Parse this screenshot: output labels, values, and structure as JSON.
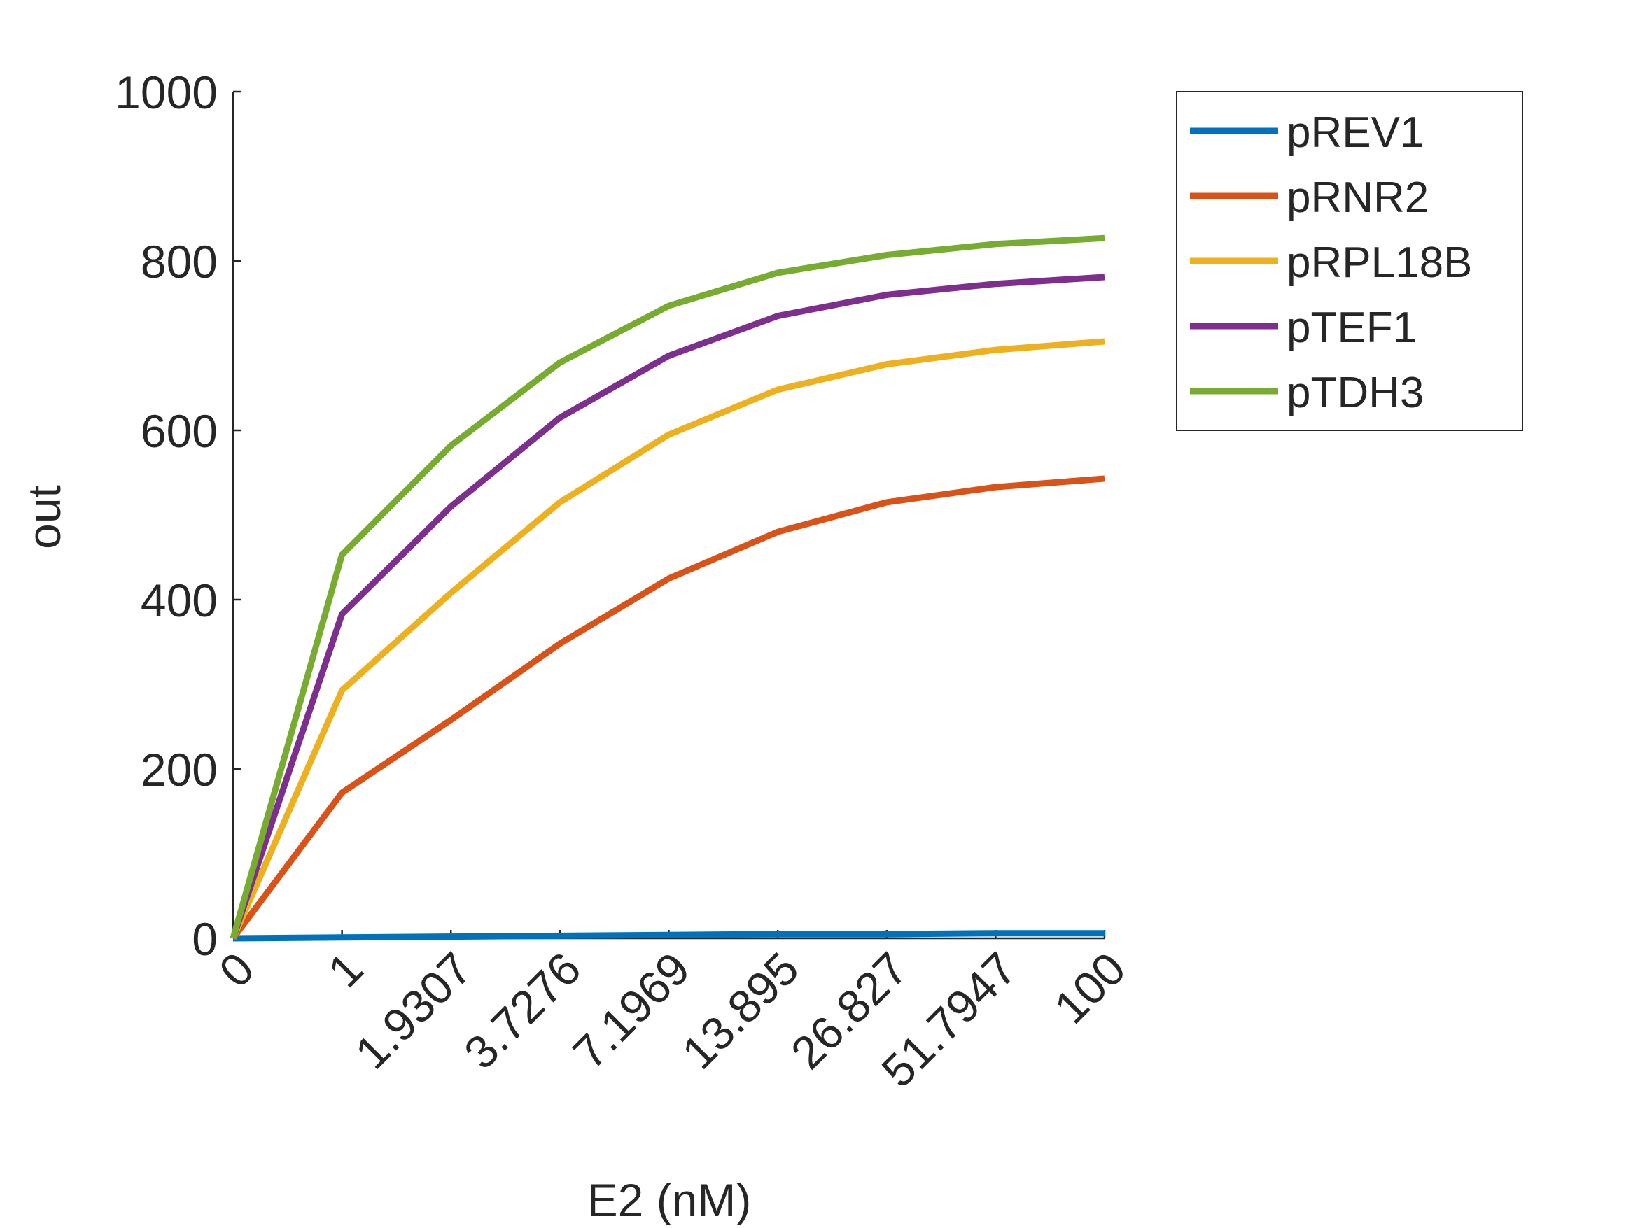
{
  "chart_data": {
    "type": "line",
    "title": "",
    "xlabel": "E2 (nM)",
    "ylabel": "out",
    "x_scale": "categorical",
    "categories": [
      "0",
      "1",
      "1.9307",
      "3.7276",
      "7.1969",
      "13.895",
      "26.827",
      "51.7947",
      "100"
    ],
    "ylim": [
      0,
      1000
    ],
    "yticks": [
      0,
      200,
      400,
      600,
      800,
      1000
    ],
    "grid": false,
    "legend_position": "top-right, outside plot area",
    "series": [
      {
        "name": "pREV1",
        "color": "#0072BD",
        "values": [
          0,
          1,
          2,
          3,
          4,
          5,
          5,
          6,
          6
        ]
      },
      {
        "name": "pRNR2",
        "color": "#D95319",
        "values": [
          0,
          172,
          258,
          348,
          425,
          480,
          515,
          533,
          543
        ]
      },
      {
        "name": "pRPL18B",
        "color": "#EDB120",
        "values": [
          0,
          293,
          408,
          515,
          595,
          648,
          678,
          695,
          705
        ]
      },
      {
        "name": "pTEF1",
        "color": "#7E2F8E",
        "values": [
          0,
          383,
          510,
          615,
          688,
          735,
          760,
          773,
          781
        ]
      },
      {
        "name": "pTDH3",
        "color": "#77AC30",
        "values": [
          0,
          453,
          582,
          680,
          747,
          786,
          807,
          820,
          827
        ]
      }
    ]
  }
}
